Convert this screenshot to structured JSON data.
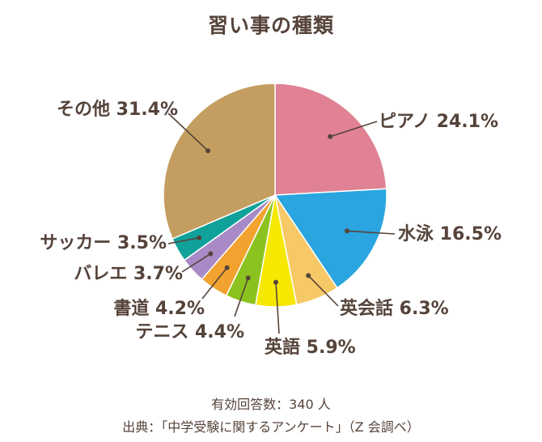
{
  "chart_data": {
    "type": "pie",
    "title": "習い事の種類",
    "slices": [
      {
        "label": "ピアノ",
        "value": 24.1,
        "color": "#e08294"
      },
      {
        "label": "水泳",
        "value": 16.5,
        "color": "#2aa5e0"
      },
      {
        "label": "英会話",
        "value": 6.3,
        "color": "#f6c866"
      },
      {
        "label": "英語",
        "value": 5.9,
        "color": "#f6e800"
      },
      {
        "label": "テニス",
        "value": 4.4,
        "color": "#8cc21f"
      },
      {
        "label": "書道",
        "value": 4.2,
        "color": "#f2a22e"
      },
      {
        "label": "バレエ",
        "value": 3.7,
        "color": "#a88ac6"
      },
      {
        "label": "サッカー",
        "value": 3.5,
        "color": "#0fa19a"
      },
      {
        "label": "その他",
        "value": 31.4,
        "color": "#c49e60"
      }
    ],
    "unit": "%"
  },
  "footer": {
    "respondents": "有効回答数：340 人",
    "source": "出典：「中学受験に関するアンケート」（Z 会調べ）"
  },
  "colors": {
    "text": "#55433a",
    "background": "#ffffff"
  }
}
